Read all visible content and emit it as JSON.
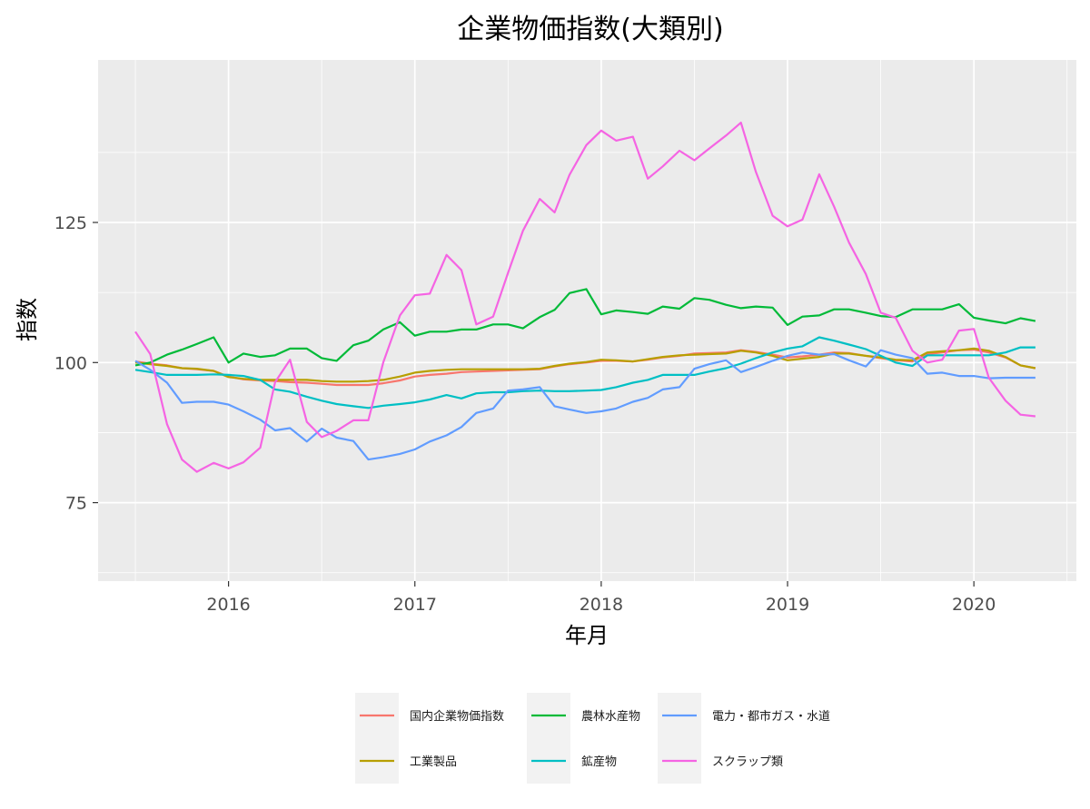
{
  "chart_data": {
    "type": "line",
    "title": "企業物価指数(大類別)",
    "xlabel": "年月",
    "ylabel": "指数",
    "xlim": [
      2015.3,
      2020.55
    ],
    "ylim": [
      61,
      154
    ],
    "x_ticks": [
      2016,
      2017,
      2018,
      2019,
      2020
    ],
    "x_tick_labels": [
      "2016",
      "2017",
      "2018",
      "2019",
      "2020"
    ],
    "y_ticks": [
      75,
      100,
      125
    ],
    "y_tick_labels": [
      "75",
      "100",
      "125"
    ],
    "grid": true,
    "legend_position": "bottom",
    "x": [
      2015.5,
      2015.58,
      2015.67,
      2015.75,
      2015.83,
      2015.92,
      2016.0,
      2016.08,
      2016.17,
      2016.25,
      2016.33,
      2016.42,
      2016.5,
      2016.58,
      2016.67,
      2016.75,
      2016.83,
      2016.92,
      2017.0,
      2017.08,
      2017.17,
      2017.25,
      2017.33,
      2017.42,
      2017.5,
      2017.58,
      2017.67,
      2017.75,
      2017.83,
      2017.92,
      2018.0,
      2018.08,
      2018.17,
      2018.25,
      2018.33,
      2018.42,
      2018.5,
      2018.58,
      2018.67,
      2018.75,
      2018.83,
      2018.92,
      2019.0,
      2019.08,
      2019.17,
      2019.25,
      2019.33,
      2019.42,
      2019.5,
      2019.58,
      2019.67,
      2019.75,
      2019.83,
      2019.92,
      2020.0,
      2020.08,
      2020.17,
      2020.25,
      2020.33
    ],
    "series": [
      {
        "name": "国内企業物価指数",
        "color": "#F8766D",
        "values": [
          100.2,
          99.8,
          99.5,
          99.0,
          98.8,
          98.5,
          97.5,
          97.0,
          96.8,
          96.7,
          96.5,
          96.4,
          96.2,
          96.0,
          96.0,
          96.0,
          96.3,
          96.8,
          97.5,
          97.8,
          98.0,
          98.3,
          98.4,
          98.5,
          98.6,
          98.7,
          98.8,
          99.3,
          99.7,
          100.0,
          100.3,
          100.3,
          100.2,
          100.5,
          100.9,
          101.2,
          101.6,
          101.7,
          101.8,
          102.2,
          101.9,
          101.4,
          100.9,
          101.1,
          101.4,
          101.8,
          101.7,
          101.2,
          100.8,
          100.4,
          100.2,
          101.5,
          101.8,
          102.2,
          102.3,
          101.8,
          100.9,
          99.5,
          99.0
        ]
      },
      {
        "name": "工業製品",
        "color": "#B79F00",
        "values": [
          100.0,
          99.7,
          99.4,
          99.0,
          98.9,
          98.5,
          97.4,
          97.1,
          96.9,
          96.9,
          96.9,
          96.9,
          96.7,
          96.6,
          96.6,
          96.7,
          96.9,
          97.5,
          98.2,
          98.5,
          98.7,
          98.8,
          98.8,
          98.8,
          98.8,
          98.8,
          98.9,
          99.4,
          99.8,
          100.1,
          100.5,
          100.4,
          100.2,
          100.6,
          101.0,
          101.3,
          101.4,
          101.5,
          101.6,
          102.1,
          101.8,
          101.2,
          100.4,
          100.7,
          101.0,
          101.6,
          101.6,
          101.2,
          100.9,
          100.5,
          100.4,
          101.8,
          102.0,
          102.2,
          102.5,
          102.1,
          101.0,
          99.5,
          99.0
        ]
      },
      {
        "name": "農林水産物",
        "color": "#00BA38",
        "values": [
          99.5,
          100.0,
          101.4,
          102.3,
          103.3,
          104.5,
          100.0,
          101.6,
          101.0,
          101.3,
          102.5,
          102.5,
          100.8,
          100.3,
          103.1,
          103.9,
          105.9,
          107.2,
          104.8,
          105.5,
          105.5,
          105.9,
          105.9,
          106.8,
          106.8,
          106.1,
          108.1,
          109.4,
          112.4,
          113.1,
          108.6,
          109.3,
          109.0,
          108.7,
          110.0,
          109.6,
          111.5,
          111.2,
          110.3,
          109.7,
          110.0,
          109.8,
          106.7,
          108.2,
          108.4,
          109.5,
          109.5,
          108.9,
          108.3,
          108.1,
          109.5,
          109.5,
          109.5,
          110.4,
          108.0,
          107.5,
          107.0,
          107.9,
          107.4
        ]
      },
      {
        "name": "鉱産物",
        "color": "#00BFC4",
        "values": [
          98.7,
          98.3,
          97.8,
          97.8,
          97.8,
          97.9,
          97.8,
          97.6,
          96.9,
          95.2,
          94.8,
          93.9,
          93.2,
          92.6,
          92.2,
          91.9,
          92.3,
          92.6,
          92.9,
          93.4,
          94.2,
          93.6,
          94.5,
          94.7,
          94.7,
          94.9,
          95.0,
          94.9,
          94.9,
          95.0,
          95.1,
          95.6,
          96.4,
          96.9,
          97.8,
          97.8,
          97.8,
          98.4,
          99.0,
          99.8,
          100.8,
          101.8,
          102.5,
          102.9,
          104.5,
          103.9,
          103.2,
          102.4,
          101.2,
          100.0,
          99.4,
          101.3,
          101.3,
          101.3,
          101.3,
          101.3,
          101.8,
          102.7,
          102.7
        ]
      },
      {
        "name": "電力・都市ガス・水道",
        "color": "#619CFF",
        "values": [
          100.3,
          98.7,
          96.4,
          92.8,
          93.0,
          93.0,
          92.5,
          91.3,
          89.8,
          87.9,
          88.3,
          85.9,
          88.2,
          86.6,
          86.0,
          82.7,
          83.1,
          83.7,
          84.5,
          85.9,
          87.0,
          88.5,
          91.0,
          91.8,
          95.0,
          95.2,
          95.6,
          92.2,
          91.6,
          91.0,
          91.3,
          91.8,
          93.0,
          93.7,
          95.2,
          95.6,
          98.9,
          99.7,
          100.4,
          98.3,
          99.2,
          100.3,
          101.2,
          101.8,
          101.4,
          101.5,
          100.4,
          99.3,
          102.2,
          101.4,
          100.8,
          98.0,
          98.2,
          97.6,
          97.6,
          97.2,
          97.3,
          97.3,
          97.3
        ]
      },
      {
        "name": "スクラップ類",
        "color": "#F564E3",
        "values": [
          105.5,
          101.5,
          89.0,
          82.7,
          80.5,
          82.1,
          81.1,
          82.2,
          84.8,
          96.5,
          100.5,
          89.4,
          86.7,
          87.8,
          89.7,
          89.7,
          100.0,
          108.4,
          112.0,
          112.3,
          119.2,
          116.5,
          106.8,
          108.2,
          116.0,
          123.5,
          129.2,
          126.8,
          133.5,
          138.8,
          141.4,
          139.6,
          140.3,
          132.8,
          135.0,
          137.8,
          136.1,
          138.2,
          140.5,
          142.8,
          134.0,
          126.2,
          124.3,
          125.5,
          133.6,
          127.8,
          121.4,
          115.8,
          108.9,
          108.0,
          102.1,
          100.0,
          100.5,
          105.7,
          106.0,
          97.3,
          93.2,
          90.7,
          90.4
        ]
      }
    ]
  }
}
